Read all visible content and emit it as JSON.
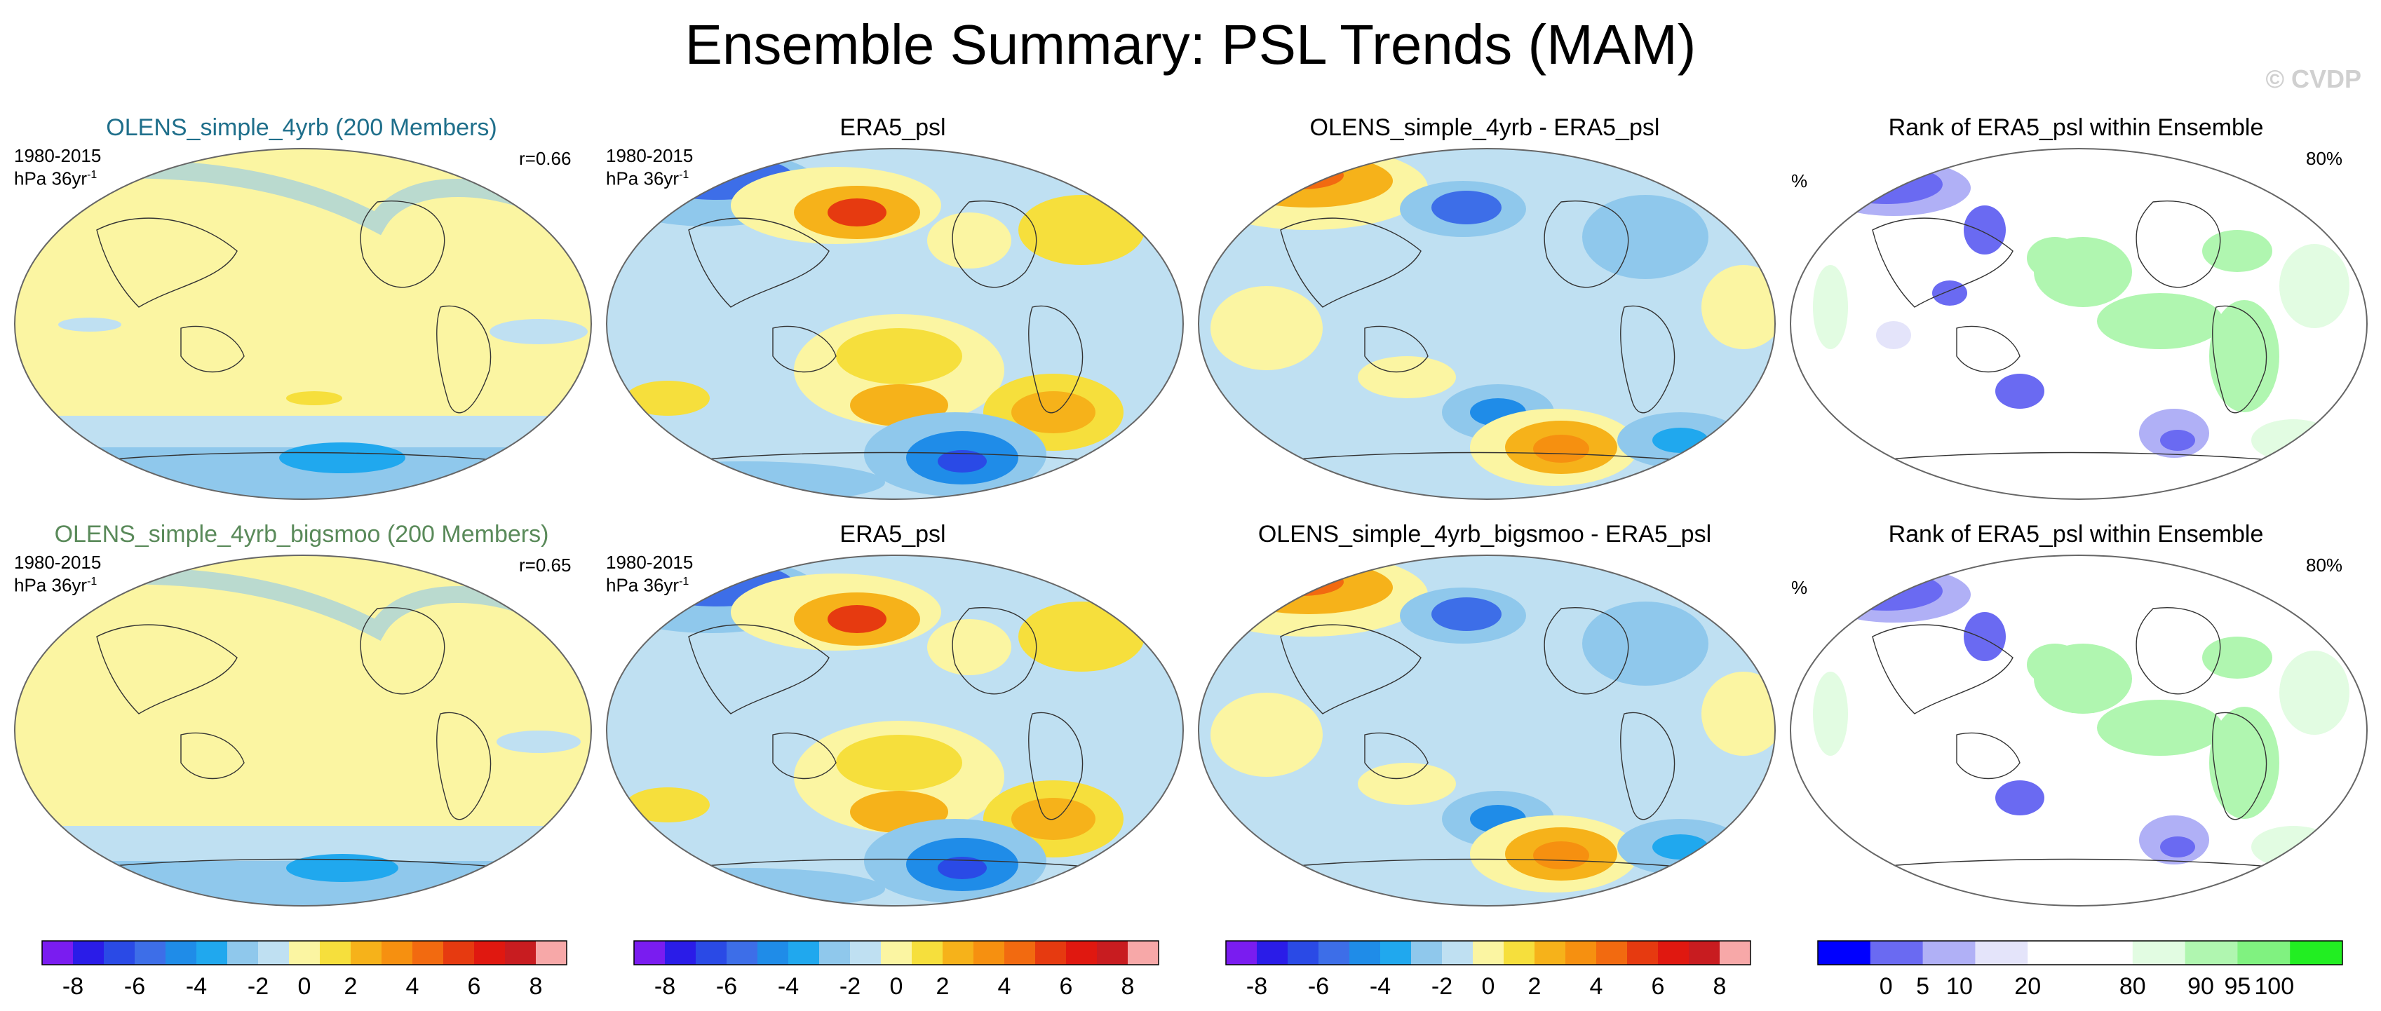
{
  "title": "Ensemble Summary: PSL Trends (MAM)",
  "watermark": "© CVDP",
  "rows": [
    {
      "panels": [
        {
          "title": "OLENS_simple_4yrb (200 Members)",
          "title_color": "#1f6f8b",
          "period": "1980-2015",
          "units": "hPa 36yr",
          "units_sup": "-1",
          "stat": "r=0.66",
          "type": "ens_mean"
        },
        {
          "title": "ERA5_psl",
          "title_color": "#000000",
          "period": "1980-2015",
          "units": "hPa 36yr",
          "units_sup": "-1",
          "type": "obs"
        },
        {
          "title": "OLENS_simple_4yrb - ERA5_psl",
          "title_color": "#000000",
          "type": "diff"
        },
        {
          "title": "Rank of ERA5_psl within Ensemble",
          "title_color": "#000000",
          "units": "%",
          "stat": "80%",
          "type": "rank"
        }
      ]
    },
    {
      "panels": [
        {
          "title": "OLENS_simple_4yrb_bigsmoo (200 Members)",
          "title_color": "#5a8a5a",
          "period": "1980-2015",
          "units": "hPa 36yr",
          "units_sup": "-1",
          "stat": "r=0.65",
          "type": "ens_mean"
        },
        {
          "title": "ERA5_psl",
          "title_color": "#000000",
          "period": "1980-2015",
          "units": "hPa 36yr",
          "units_sup": "-1",
          "type": "obs"
        },
        {
          "title": "OLENS_simple_4yrb_bigsmoo - ERA5_psl",
          "title_color": "#000000",
          "type": "diff"
        },
        {
          "title": "Rank of ERA5_psl within Ensemble",
          "title_color": "#000000",
          "units": "%",
          "stat": "80%",
          "type": "rank"
        }
      ]
    }
  ],
  "colorbars": {
    "trend": {
      "colors": [
        "#7a1cf0",
        "#2a1ce8",
        "#2a4ae6",
        "#3d6ee8",
        "#1f8ce8",
        "#20a8ee",
        "#8fc8ec",
        "#bfe0f2",
        "#fbf5a2",
        "#f6df3c",
        "#f6b21a",
        "#f69010",
        "#f26a10",
        "#e63a10",
        "#e01810",
        "#c81c20",
        "#f7a8a8"
      ],
      "labels": [
        "-8",
        "-6",
        "-4",
        "-2",
        "0",
        "2",
        "4",
        "6",
        "8"
      ]
    },
    "rank": {
      "colors": [
        "#0000ff",
        "#6a6af2",
        "#b0b0f6",
        "#e4e4fa",
        "#ffffff",
        "#ffffff",
        "#e2fce2",
        "#b0f6b0",
        "#80f280",
        "#22ee22"
      ],
      "labels": [
        "0",
        "5",
        "10",
        "20",
        "80",
        "90",
        "95",
        "100"
      ]
    }
  }
}
